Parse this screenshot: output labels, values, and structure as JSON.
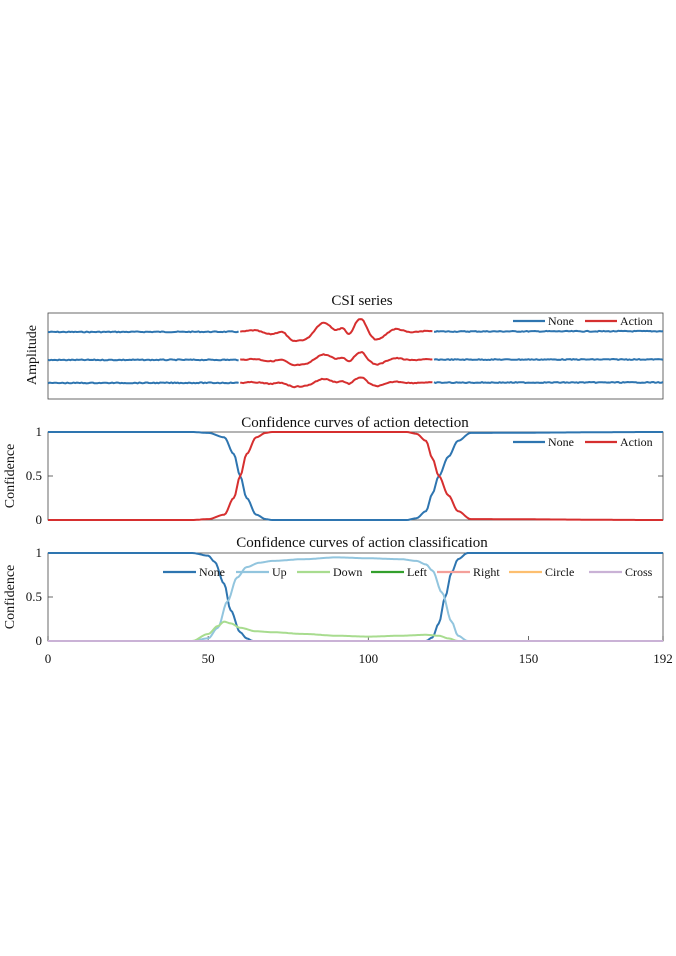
{
  "colors": {
    "none": "#2E75B0",
    "action": "#D62F2F",
    "up": "#92C5DE",
    "down": "#A8DC8F",
    "left": "#33A02C",
    "right": "#F4A09A",
    "circle": "#FDBF6F",
    "cross": "#CAB2D6"
  },
  "chart_data": [
    {
      "type": "line",
      "title": "CSI series",
      "ylabel": "Amplitude",
      "xlim": [
        0,
        192
      ],
      "legend": [
        "None",
        "Action"
      ],
      "legend_position": "top-right",
      "action_segment_x": [
        60,
        120
      ],
      "series": [
        {
          "name": "None",
          "segments": "x 0-60 and 120-192",
          "traces": 3
        },
        {
          "name": "Action",
          "segments": "x 60-120",
          "traces": 3
        }
      ]
    },
    {
      "type": "line",
      "title": "Confidence curves of action detection",
      "ylabel": "Confidence",
      "xlim": [
        0,
        192
      ],
      "ylim": [
        0,
        1
      ],
      "yticks": [
        "0",
        "0.5",
        "1"
      ],
      "legend": [
        "None",
        "Action"
      ],
      "legend_position": "top-right",
      "series": [
        {
          "name": "None",
          "x": [
            0,
            45,
            50,
            55,
            58,
            60,
            62,
            65,
            68,
            70,
            100,
            112,
            115,
            118,
            120,
            122,
            125,
            128,
            132,
            192
          ],
          "y": [
            1,
            1,
            0.99,
            0.94,
            0.75,
            0.5,
            0.25,
            0.06,
            0.01,
            0,
            0,
            0,
            0.02,
            0.1,
            0.3,
            0.5,
            0.72,
            0.9,
            0.99,
            1
          ]
        },
        {
          "name": "Action",
          "x": [
            0,
            45,
            50,
            55,
            58,
            60,
            62,
            65,
            68,
            70,
            100,
            112,
            115,
            118,
            120,
            122,
            125,
            128,
            132,
            192
          ],
          "y": [
            0,
            0,
            0.01,
            0.06,
            0.25,
            0.5,
            0.75,
            0.94,
            0.99,
            1,
            1,
            1,
            0.98,
            0.9,
            0.7,
            0.5,
            0.28,
            0.1,
            0.01,
            0
          ]
        }
      ]
    },
    {
      "type": "line",
      "title": "Confidence curves of action classification",
      "ylabel": "Confidence",
      "xlim": [
        0,
        192
      ],
      "ylim": [
        0,
        1
      ],
      "yticks": [
        "0",
        "0.5",
        "1"
      ],
      "xticks": [
        "0",
        "50",
        "100",
        "150",
        "192"
      ],
      "xtick_values": [
        0,
        50,
        100,
        150,
        192
      ],
      "legend": [
        "None",
        "Up",
        "Down",
        "Left",
        "Right",
        "Circle",
        "Cross"
      ],
      "legend_position": "top-center",
      "series": [
        {
          "name": "None",
          "x": [
            0,
            45,
            50,
            52,
            55,
            57,
            60,
            62,
            64,
            100,
            118,
            120,
            122,
            124,
            126,
            128,
            131,
            192
          ],
          "y": [
            1,
            1,
            0.97,
            0.9,
            0.65,
            0.35,
            0.1,
            0.03,
            0,
            0,
            0,
            0.04,
            0.2,
            0.5,
            0.78,
            0.93,
            1,
            1
          ]
        },
        {
          "name": "Up",
          "x": [
            0,
            45,
            50,
            53,
            56,
            59,
            62,
            66,
            70,
            80,
            90,
            100,
            110,
            115,
            118,
            120,
            123,
            126,
            128,
            131,
            192
          ],
          "y": [
            0,
            0,
            0.03,
            0.15,
            0.45,
            0.72,
            0.84,
            0.89,
            0.91,
            0.93,
            0.95,
            0.94,
            0.93,
            0.91,
            0.87,
            0.8,
            0.55,
            0.22,
            0.06,
            0,
            0
          ]
        },
        {
          "name": "Down",
          "x": [
            0,
            45,
            50,
            53,
            55,
            57,
            60,
            65,
            70,
            80,
            90,
            100,
            110,
            118,
            122,
            125,
            128,
            192
          ],
          "y": [
            0,
            0,
            0.08,
            0.17,
            0.22,
            0.2,
            0.15,
            0.11,
            0.1,
            0.08,
            0.06,
            0.05,
            0.06,
            0.07,
            0.06,
            0.03,
            0,
            0
          ]
        },
        {
          "name": "Left",
          "x": [
            0,
            192
          ],
          "y": [
            0,
            0
          ]
        },
        {
          "name": "Right",
          "x": [
            0,
            192
          ],
          "y": [
            0,
            0
          ]
        },
        {
          "name": "Circle",
          "x": [
            0,
            192
          ],
          "y": [
            0,
            0
          ]
        },
        {
          "name": "Cross",
          "x": [
            0,
            192
          ],
          "y": [
            0,
            0
          ]
        }
      ]
    }
  ]
}
